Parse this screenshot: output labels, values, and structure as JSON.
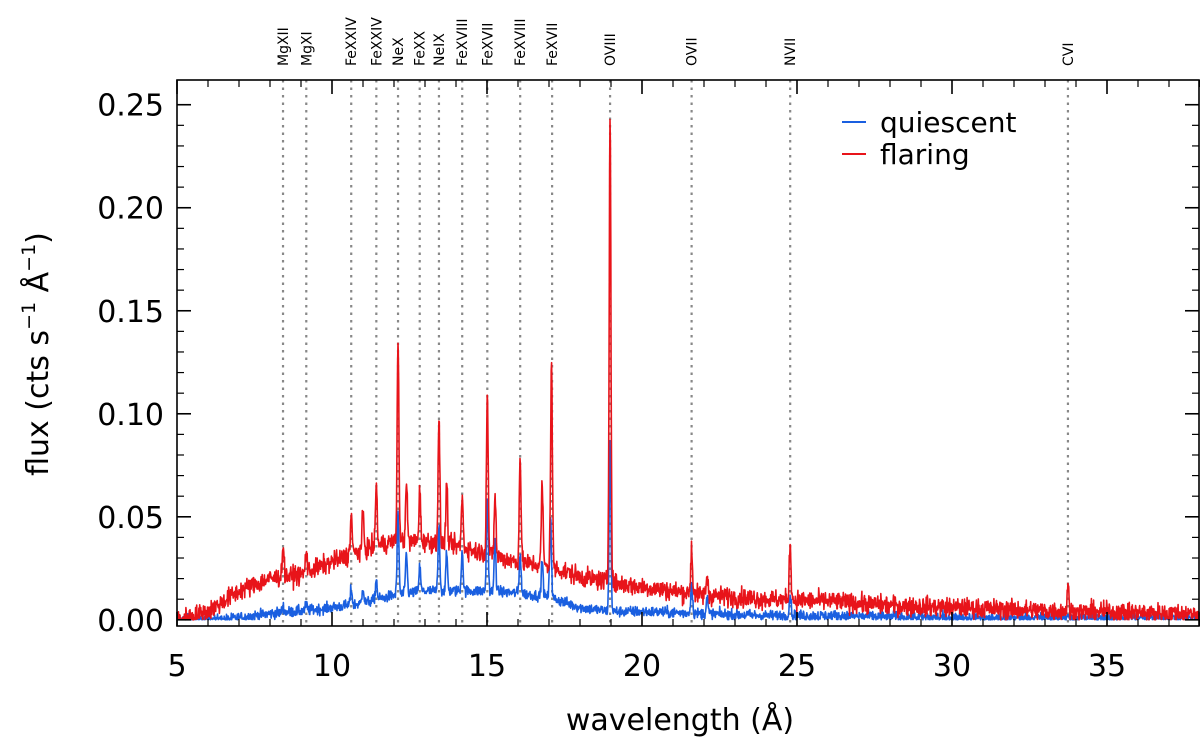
{
  "chart_data": {
    "type": "line",
    "title": "",
    "xlabel": "wavelength (Å)",
    "ylabel_text": "flux  (cts s",
    "ylabel_exp1": "−1",
    "ylabel_mid": " Å",
    "ylabel_exp2": "−1",
    "ylabel_close": ")",
    "xlim": [
      5,
      38
    ],
    "ylim": [
      -0.003,
      0.262
    ],
    "xticks": [
      5,
      10,
      15,
      20,
      25,
      30,
      35
    ],
    "xtick_labels": [
      "5",
      "10",
      "15",
      "20",
      "25",
      "30",
      "35"
    ],
    "yticks": [
      0.0,
      0.05,
      0.1,
      0.15,
      0.2,
      0.25
    ],
    "ytick_labels": [
      "0.00",
      "0.05",
      "0.10",
      "0.15",
      "0.20",
      "0.25"
    ],
    "legend": {
      "placement": "top-right",
      "entries": [
        {
          "label": "quiescent",
          "color": "#1a5fe0"
        },
        {
          "label": "flaring",
          "color": "#e8141a"
        }
      ]
    },
    "line_markers": [
      {
        "label": "MgXII",
        "wavelength": 8.42
      },
      {
        "label": "MgXI",
        "wavelength": 9.17
      },
      {
        "label": "FeXXIV",
        "wavelength": 10.62
      },
      {
        "label": "FeXXIV",
        "wavelength": 11.43
      },
      {
        "label": "NeX",
        "wavelength": 12.13
      },
      {
        "label": "FeXX",
        "wavelength": 12.83
      },
      {
        "label": "NeIX",
        "wavelength": 13.45
      },
      {
        "label": "FeXVIII",
        "wavelength": 14.2
      },
      {
        "label": "FeXVII",
        "wavelength": 15.01
      },
      {
        "label": "FeXVIII",
        "wavelength": 16.07
      },
      {
        "label": "FeXVII",
        "wavelength": 17.1
      },
      {
        "label": "OVIII",
        "wavelength": 18.97
      },
      {
        "label": "OVII",
        "wavelength": 21.6
      },
      {
        "label": "NVII",
        "wavelength": 24.78
      },
      {
        "label": "CVI",
        "wavelength": 33.74
      }
    ],
    "series": [
      {
        "name": "quiescent",
        "color": "#1a5fe0",
        "continuum": [
          [
            5,
            0.0
          ],
          [
            6.5,
            0.0
          ],
          [
            8,
            0.003
          ],
          [
            9.5,
            0.005
          ],
          [
            11,
            0.008
          ],
          [
            12,
            0.012
          ],
          [
            13,
            0.014
          ],
          [
            14,
            0.014
          ],
          [
            15,
            0.014
          ],
          [
            16,
            0.013
          ],
          [
            17,
            0.011
          ],
          [
            18,
            0.006
          ],
          [
            19,
            0.004
          ],
          [
            20,
            0.004
          ],
          [
            22,
            0.003
          ],
          [
            24,
            0.002
          ],
          [
            26,
            0.002
          ],
          [
            30,
            0.001
          ],
          [
            38,
            0.001
          ]
        ],
        "lines": [
          [
            8.42,
            0.003
          ],
          [
            9.17,
            0.003
          ],
          [
            10.62,
            0.008
          ],
          [
            11.0,
            0.008
          ],
          [
            11.43,
            0.01
          ],
          [
            12.13,
            0.04
          ],
          [
            12.4,
            0.02
          ],
          [
            12.83,
            0.012
          ],
          [
            13.45,
            0.032
          ],
          [
            13.7,
            0.018
          ],
          [
            14.2,
            0.02
          ],
          [
            15.01,
            0.045
          ],
          [
            15.26,
            0.025
          ],
          [
            16.07,
            0.02
          ],
          [
            16.78,
            0.018
          ],
          [
            17.05,
            0.04
          ],
          [
            18.97,
            0.083
          ],
          [
            21.6,
            0.015
          ],
          [
            22.1,
            0.008
          ],
          [
            24.78,
            0.01
          ],
          [
            33.74,
            0.002
          ]
        ],
        "noise": 0.0025
      },
      {
        "name": "flaring",
        "color": "#e8141a",
        "continuum": [
          [
            5,
            0.0
          ],
          [
            6,
            0.004
          ],
          [
            7,
            0.014
          ],
          [
            8,
            0.02
          ],
          [
            9,
            0.022
          ],
          [
            10,
            0.028
          ],
          [
            11,
            0.034
          ],
          [
            12,
            0.038
          ],
          [
            13,
            0.038
          ],
          [
            14,
            0.036
          ],
          [
            15,
            0.032
          ],
          [
            16,
            0.028
          ],
          [
            17,
            0.026
          ],
          [
            18,
            0.021
          ],
          [
            19,
            0.018
          ],
          [
            20,
            0.016
          ],
          [
            22,
            0.012
          ],
          [
            24,
            0.01
          ],
          [
            26,
            0.009
          ],
          [
            28,
            0.007
          ],
          [
            30,
            0.006
          ],
          [
            34,
            0.004
          ],
          [
            38,
            0.003
          ]
        ],
        "lines": [
          [
            8.42,
            0.016
          ],
          [
            9.17,
            0.01
          ],
          [
            10.62,
            0.02
          ],
          [
            11.0,
            0.018
          ],
          [
            11.43,
            0.03
          ],
          [
            12.13,
            0.098
          ],
          [
            12.4,
            0.03
          ],
          [
            12.83,
            0.025
          ],
          [
            13.45,
            0.06
          ],
          [
            13.7,
            0.03
          ],
          [
            14.2,
            0.025
          ],
          [
            15.01,
            0.078
          ],
          [
            15.26,
            0.03
          ],
          [
            16.07,
            0.052
          ],
          [
            16.78,
            0.04
          ],
          [
            17.08,
            0.1
          ],
          [
            18.97,
            0.228
          ],
          [
            21.6,
            0.022
          ],
          [
            22.1,
            0.01
          ],
          [
            24.78,
            0.028
          ],
          [
            33.74,
            0.012
          ]
        ],
        "noise": 0.0045
      }
    ]
  }
}
